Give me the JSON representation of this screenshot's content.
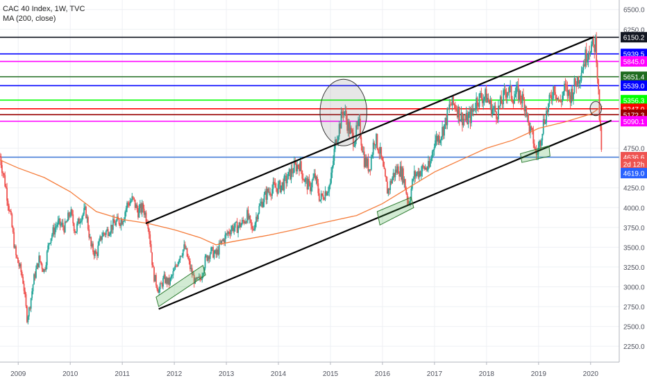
{
  "legend": {
    "title": "CAC 40 Index, 1W, TVC",
    "indicator": "MA (200, close)"
  },
  "chart_data": {
    "type": "candlestick",
    "instrument": "CAC 40 Index",
    "timeframe": "1W",
    "source": "TVC",
    "xlim": [
      2008.65,
      2020.55
    ],
    "ylim": [
      2050,
      6620
    ],
    "x_ticks": [
      {
        "label": "2009",
        "x": 2009.0
      },
      {
        "label": "2010",
        "x": 2010.0
      },
      {
        "label": "2011",
        "x": 2011.0
      },
      {
        "label": "2012",
        "x": 2012.0
      },
      {
        "label": "2013",
        "x": 2013.0
      },
      {
        "label": "2014",
        "x": 2014.0
      },
      {
        "label": "2015",
        "x": 2015.0
      },
      {
        "label": "2016",
        "x": 2016.0
      },
      {
        "label": "2017",
        "x": 2017.0
      },
      {
        "label": "2018",
        "x": 2018.0
      },
      {
        "label": "2019",
        "x": 2019.0
      },
      {
        "label": "2020",
        "x": 2020.0
      }
    ],
    "y_ticks": [
      {
        "label": "6500.0",
        "v": 6500
      },
      {
        "label": "6250.0",
        "v": 6250
      },
      {
        "label": "4750.0",
        "v": 4750
      },
      {
        "label": "4250.0",
        "v": 4250
      },
      {
        "label": "4000.0",
        "v": 4000
      },
      {
        "label": "3750.0",
        "v": 3750
      },
      {
        "label": "3500.0",
        "v": 3500
      },
      {
        "label": "3250.0",
        "v": 3250
      },
      {
        "label": "3000.0",
        "v": 3000
      },
      {
        "label": "2750.0",
        "v": 2750
      },
      {
        "label": "2500.0",
        "v": 2500
      },
      {
        "label": "2250.0",
        "v": 2250
      }
    ],
    "price_path": [
      [
        2008.65,
        4650
      ],
      [
        2008.75,
        4300
      ],
      [
        2008.85,
        3900
      ],
      [
        2008.95,
        3400
      ],
      [
        2009.05,
        3200
      ],
      [
        2009.1,
        3050
      ],
      [
        2009.17,
        2600
      ],
      [
        2009.22,
        2750
      ],
      [
        2009.3,
        3100
      ],
      [
        2009.4,
        3350
      ],
      [
        2009.5,
        3200
      ],
      [
        2009.6,
        3600
      ],
      [
        2009.75,
        3800
      ],
      [
        2009.9,
        3750
      ],
      [
        2010.0,
        3950
      ],
      [
        2010.1,
        3700
      ],
      [
        2010.2,
        3900
      ],
      [
        2010.3,
        3950
      ],
      [
        2010.4,
        3500
      ],
      [
        2010.5,
        3400
      ],
      [
        2010.6,
        3650
      ],
      [
        2010.7,
        3700
      ],
      [
        2010.85,
        3800
      ],
      [
        2011.0,
        3850
      ],
      [
        2011.1,
        4050
      ],
      [
        2011.2,
        4100
      ],
      [
        2011.3,
        3950
      ],
      [
        2011.4,
        4000
      ],
      [
        2011.5,
        3800
      ],
      [
        2011.6,
        3150
      ],
      [
        2011.7,
        2950
      ],
      [
        2011.8,
        3100
      ],
      [
        2011.9,
        3050
      ],
      [
        2012.0,
        3200
      ],
      [
        2012.1,
        3400
      ],
      [
        2012.2,
        3500
      ],
      [
        2012.3,
        3250
      ],
      [
        2012.4,
        3050
      ],
      [
        2012.5,
        3100
      ],
      [
        2012.6,
        3350
      ],
      [
        2012.7,
        3450
      ],
      [
        2012.8,
        3400
      ],
      [
        2012.9,
        3550
      ],
      [
        2013.0,
        3650
      ],
      [
        2013.1,
        3750
      ],
      [
        2013.2,
        3750
      ],
      [
        2013.3,
        3800
      ],
      [
        2013.4,
        3900
      ],
      [
        2013.5,
        3700
      ],
      [
        2013.6,
        3950
      ],
      [
        2013.7,
        4100
      ],
      [
        2013.8,
        4200
      ],
      [
        2013.9,
        4250
      ],
      [
        2014.0,
        4250
      ],
      [
        2014.1,
        4300
      ],
      [
        2014.2,
        4400
      ],
      [
        2014.3,
        4500
      ],
      [
        2014.4,
        4550
      ],
      [
        2014.5,
        4350
      ],
      [
        2014.6,
        4250
      ],
      [
        2014.7,
        4400
      ],
      [
        2014.8,
        4100
      ],
      [
        2014.9,
        4200
      ],
      [
        2015.0,
        4300
      ],
      [
        2015.1,
        4850
      ],
      [
        2015.2,
        5100
      ],
      [
        2015.25,
        5250
      ],
      [
        2015.35,
        5000
      ],
      [
        2015.45,
        4850
      ],
      [
        2015.55,
        5050
      ],
      [
        2015.65,
        4600
      ],
      [
        2015.75,
        4500
      ],
      [
        2015.85,
        4900
      ],
      [
        2015.95,
        4700
      ],
      [
        2016.05,
        4350
      ],
      [
        2016.1,
        4200
      ],
      [
        2016.2,
        4400
      ],
      [
        2016.3,
        4500
      ],
      [
        2016.4,
        4400
      ],
      [
        2016.5,
        4050
      ],
      [
        2016.6,
        4400
      ],
      [
        2016.7,
        4450
      ],
      [
        2016.8,
        4500
      ],
      [
        2016.9,
        4500
      ],
      [
        2017.0,
        4850
      ],
      [
        2017.1,
        4900
      ],
      [
        2017.2,
        5050
      ],
      [
        2017.3,
        5300
      ],
      [
        2017.4,
        5300
      ],
      [
        2017.5,
        5150
      ],
      [
        2017.6,
        5100
      ],
      [
        2017.7,
        5150
      ],
      [
        2017.8,
        5350
      ],
      [
        2017.9,
        5400
      ],
      [
        2018.0,
        5400
      ],
      [
        2018.1,
        5250
      ],
      [
        2018.2,
        5200
      ],
      [
        2018.3,
        5350
      ],
      [
        2018.4,
        5500
      ],
      [
        2018.5,
        5400
      ],
      [
        2018.6,
        5450
      ],
      [
        2018.7,
        5350
      ],
      [
        2018.75,
        5300
      ],
      [
        2018.8,
        5050
      ],
      [
        2018.9,
        4850
      ],
      [
        2018.95,
        4650
      ],
      [
        2019.0,
        4750
      ],
      [
        2019.1,
        5100
      ],
      [
        2019.2,
        5300
      ],
      [
        2019.3,
        5550
      ],
      [
        2019.4,
        5300
      ],
      [
        2019.5,
        5500
      ],
      [
        2019.6,
        5400
      ],
      [
        2019.7,
        5550
      ],
      [
        2019.8,
        5700
      ],
      [
        2019.9,
        5900
      ],
      [
        2019.95,
        6000
      ],
      [
        2020.0,
        6050
      ],
      [
        2020.05,
        6000
      ],
      [
        2020.1,
        6100
      ],
      [
        2020.13,
        5700
      ],
      [
        2020.18,
        5000
      ],
      [
        2020.22,
        4650
      ]
    ],
    "ma200_path": [
      [
        2008.65,
        4600
      ],
      [
        2009.0,
        4500
      ],
      [
        2009.5,
        4380
      ],
      [
        2010.0,
        4200
      ],
      [
        2010.5,
        3950
      ],
      [
        2011.0,
        3850
      ],
      [
        2011.5,
        3800
      ],
      [
        2012.0,
        3720
      ],
      [
        2012.5,
        3620
      ],
      [
        2012.8,
        3530
      ],
      [
        2013.2,
        3580
      ],
      [
        2013.8,
        3650
      ],
      [
        2014.3,
        3720
      ],
      [
        2014.8,
        3800
      ],
      [
        2015.5,
        3900
      ],
      [
        2016.0,
        4050
      ],
      [
        2016.5,
        4250
      ],
      [
        2017.0,
        4450
      ],
      [
        2017.5,
        4600
      ],
      [
        2018.0,
        4750
      ],
      [
        2018.5,
        4850
      ],
      [
        2019.0,
        5000
      ],
      [
        2019.5,
        5080
      ],
      [
        2020.0,
        5180
      ],
      [
        2020.22,
        5280
      ]
    ],
    "ma200_final": 5280,
    "horizontal_levels": [
      {
        "label": "6150.2",
        "value": 6150.2,
        "color": "#131722"
      },
      {
        "label": "5939.5",
        "value": 5939.5,
        "color": "#0000ff"
      },
      {
        "label": "5845.0",
        "value": 5845.0,
        "color": "#ff00ff"
      },
      {
        "label": "5651.4",
        "value": 5651.4,
        "color": "#1e6b1e"
      },
      {
        "label": "5539.0",
        "value": 5539.0,
        "color": "#0000ff"
      },
      {
        "label": "5356.3",
        "value": 5356.3,
        "color": "#00ff00"
      },
      {
        "label": "5247.0",
        "value": 5247.0,
        "color": "#ff0000"
      },
      {
        "label": "5172.3",
        "value": 5172.3,
        "color": "#990000"
      },
      {
        "label": "5090.1",
        "value": 5090.1,
        "color": "#ff00ff"
      },
      {
        "label": "4636.6",
        "value": 4636.6,
        "color": "#4a7fd8"
      }
    ],
    "price_labels": [
      {
        "label": "4636.6",
        "value": 4636.6,
        "color": "#ef5350"
      },
      {
        "label": "2d 12h",
        "value": 4550,
        "color": "#ef5350"
      },
      {
        "label": "4619.0",
        "value": 4435,
        "color": "#2962ff"
      }
    ],
    "trend_lines": [
      {
        "from": [
          2011.45,
          3800
        ],
        "to": [
          2020.05,
          6150
        ]
      },
      {
        "from": [
          2011.7,
          2720
        ],
        "to": [
          2020.4,
          5100
        ]
      }
    ],
    "highlight_boxes": [
      {
        "corners": [
          [
            2011.65,
            2870
          ],
          [
            2012.55,
            3270
          ],
          [
            2012.6,
            3150
          ],
          [
            2011.7,
            2750
          ]
        ]
      },
      {
        "corners": [
          [
            2015.9,
            3950
          ],
          [
            2016.55,
            4130
          ],
          [
            2016.6,
            4000
          ],
          [
            2015.95,
            3780
          ]
        ]
      },
      {
        "corners": [
          [
            2018.65,
            4680
          ],
          [
            2019.2,
            4780
          ],
          [
            2019.22,
            4650
          ],
          [
            2018.68,
            4570
          ]
        ]
      }
    ],
    "circles": [
      {
        "center": [
          2015.25,
          5200
        ],
        "rx_years": 0.45,
        "ry_value": 420
      },
      {
        "center": [
          2020.1,
          5250
        ],
        "rx_years": 0.11,
        "ry_value": 90
      }
    ],
    "bar_volatility": 0.02
  }
}
